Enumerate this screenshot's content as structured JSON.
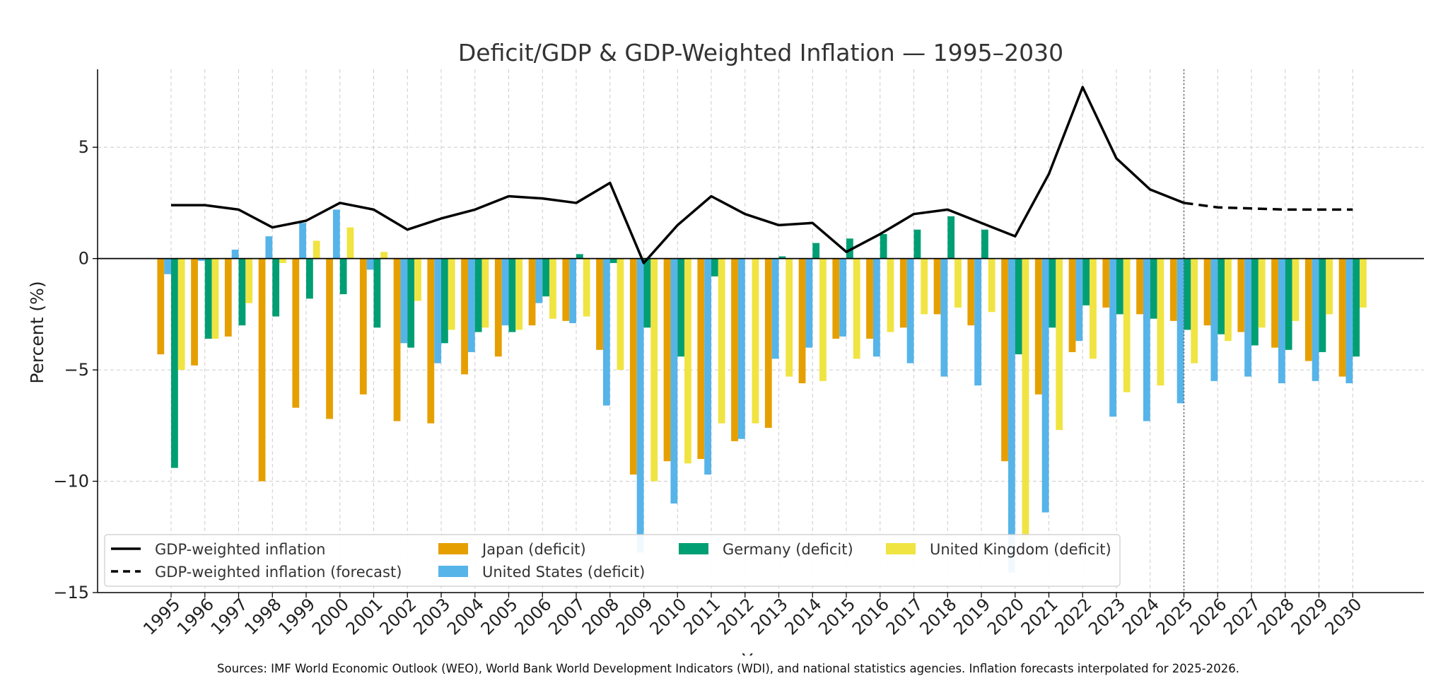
{
  "chart_data": {
    "type": "bar",
    "title": "Deficit/GDP & GDP-Weighted Inflation — 1995–2030",
    "xlabel": "Year",
    "ylabel": "Percent (%)",
    "ylim": [
      -15,
      8.5
    ],
    "yticks": [
      5,
      0,
      -5,
      -10,
      -15
    ],
    "ytick_labels": [
      "5",
      "0",
      "−5",
      "−10",
      "−15"
    ],
    "grid": true,
    "legend_position": "lower-left",
    "forecast_start": 2025,
    "categories": [
      "1995",
      "1996",
      "1997",
      "1998",
      "1999",
      "2000",
      "2001",
      "2002",
      "2003",
      "2004",
      "2005",
      "2006",
      "2007",
      "2008",
      "2009",
      "2010",
      "2011",
      "2012",
      "2013",
      "2014",
      "2015",
      "2016",
      "2017",
      "2018",
      "2019",
      "2020",
      "2021",
      "2022",
      "2023",
      "2024",
      "2025",
      "2026",
      "2027",
      "2028",
      "2029",
      "2030"
    ],
    "series": [
      {
        "name": "Japan (deficit)",
        "color": "#E69F00",
        "values": [
          -4.3,
          -4.8,
          -3.5,
          -10.0,
          -6.7,
          -7.2,
          -6.1,
          -7.3,
          -7.4,
          -5.2,
          -4.4,
          -3.0,
          -2.8,
          -4.1,
          -9.7,
          -9.1,
          -9.0,
          -8.2,
          -7.6,
          -5.6,
          -3.6,
          -3.6,
          -3.1,
          -2.5,
          -3.0,
          -9.1,
          -6.1,
          -4.2,
          -2.2,
          -2.5,
          -2.8,
          -3.0,
          -3.3,
          -4.0,
          -4.6,
          -5.3
        ]
      },
      {
        "name": "United States (deficit)",
        "color": "#56B4E9",
        "values": [
          -0.7,
          -0.1,
          0.4,
          1.0,
          1.6,
          2.2,
          -0.5,
          -3.8,
          -4.7,
          -4.2,
          -3.0,
          -2.0,
          -2.9,
          -6.6,
          -13.2,
          -11.0,
          -9.7,
          -8.1,
          -4.5,
          -4.0,
          -3.5,
          -4.4,
          -4.7,
          -5.3,
          -5.7,
          -14.1,
          -11.4,
          -3.7,
          -7.1,
          -7.3,
          -6.5,
          -5.5,
          -5.3,
          -5.6,
          -5.5,
          -5.6
        ]
      },
      {
        "name": "Germany (deficit)",
        "color": "#009E73",
        "values": [
          -9.4,
          -3.6,
          -3.0,
          -2.6,
          -1.8,
          -1.6,
          -3.1,
          -4.0,
          -3.8,
          -3.3,
          -3.3,
          -1.7,
          0.2,
          -0.2,
          -3.1,
          -4.4,
          -0.8,
          0.0,
          0.1,
          0.7,
          0.9,
          1.1,
          1.3,
          1.9,
          1.3,
          -4.3,
          -3.1,
          -2.1,
          -2.5,
          -2.7,
          -3.2,
          -3.4,
          -3.9,
          -4.1,
          -4.2,
          -4.4
        ]
      },
      {
        "name": "United Kingdom (deficit)",
        "color": "#F0E442",
        "values": [
          -5.0,
          -3.6,
          -2.0,
          -0.2,
          0.8,
          1.4,
          0.3,
          -1.9,
          -3.2,
          -3.1,
          -3.2,
          -2.7,
          -2.6,
          -5.0,
          -10.0,
          -9.2,
          -7.4,
          -7.4,
          -5.3,
          -5.5,
          -4.5,
          -3.3,
          -2.5,
          -2.2,
          -2.4,
          -12.6,
          -7.7,
          -4.5,
          -6.0,
          -5.7,
          -4.7,
          -3.7,
          -3.1,
          -2.8,
          -2.5,
          -2.2
        ]
      }
    ],
    "lines": [
      {
        "name": "GDP-weighted inflation",
        "style": "solid",
        "color": "#000000",
        "x": [
          "1995",
          "1996",
          "1997",
          "1998",
          "1999",
          "2000",
          "2001",
          "2002",
          "2003",
          "2004",
          "2005",
          "2006",
          "2007",
          "2008",
          "2009",
          "2010",
          "2011",
          "2012",
          "2013",
          "2014",
          "2015",
          "2016",
          "2017",
          "2018",
          "2019",
          "2020",
          "2021",
          "2022",
          "2023",
          "2024",
          "2025"
        ],
        "values": [
          2.4,
          2.4,
          2.2,
          1.4,
          1.7,
          2.5,
          2.2,
          1.3,
          1.8,
          2.2,
          2.8,
          2.7,
          2.5,
          3.4,
          -0.2,
          1.5,
          2.8,
          2.0,
          1.5,
          1.6,
          0.3,
          1.1,
          2.0,
          2.2,
          1.6,
          1.0,
          3.8,
          7.7,
          4.5,
          3.1,
          2.5
        ]
      },
      {
        "name": "GDP-weighted inflation (forecast)",
        "style": "dashed",
        "color": "#000000",
        "x": [
          "2025",
          "2026",
          "2027",
          "2028",
          "2029",
          "2030"
        ],
        "values": [
          2.5,
          2.3,
          2.25,
          2.2,
          2.2,
          2.2
        ]
      }
    ],
    "annotation": "Sources: IMF World Economic Outlook (WEO), World Bank World Development Indicators (WDI), and national statistics agencies. Inflation forecasts interpolated for 2025-2026."
  }
}
